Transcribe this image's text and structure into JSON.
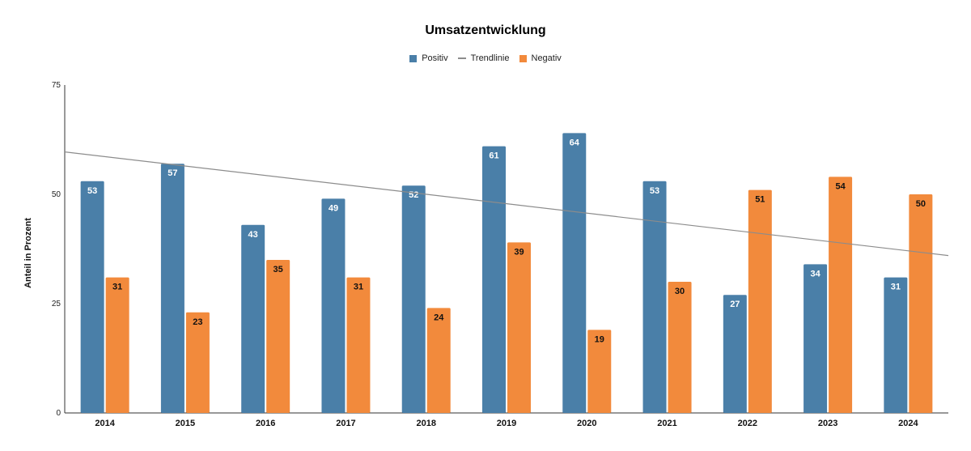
{
  "chart_data": {
    "type": "bar",
    "title": "Umsatzentwicklung",
    "xlabel": "",
    "ylabel": "Anteil in Prozent",
    "ylim": [
      0,
      75
    ],
    "yticks": [
      0,
      25,
      50,
      75
    ],
    "categories": [
      "2014",
      "2015",
      "2016",
      "2017",
      "2018",
      "2019",
      "2020",
      "2021",
      "2022",
      "2023",
      "2024"
    ],
    "series": [
      {
        "name": "Positiv",
        "color": "#4a7fa8",
        "label_color": "#ffffff",
        "values": [
          53,
          57,
          43,
          49,
          52,
          61,
          64,
          53,
          27,
          34,
          31
        ]
      },
      {
        "name": "Negativ",
        "color": "#f28a3c",
        "label_color": "#111111",
        "values": [
          31,
          23,
          35,
          31,
          24,
          39,
          19,
          30,
          51,
          54,
          50
        ]
      }
    ],
    "trendline": {
      "name": "Trendlinie",
      "color": "#8c8c8c",
      "start": 59.7,
      "end": 36.0
    },
    "legend": {
      "position": "top-center",
      "order": [
        "Positiv",
        "Trendlinie",
        "Negativ"
      ]
    },
    "grid": false
  }
}
